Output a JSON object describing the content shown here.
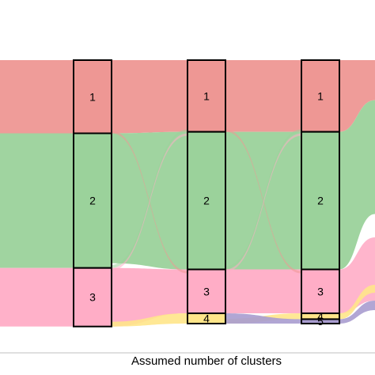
{
  "chart_data": {
    "type": "alluvial",
    "xlabel": "Assumed number of clusters",
    "axes": [
      {
        "strata": [
          {
            "label": "1",
            "value": 0.25
          },
          {
            "label": "2",
            "value": 0.46
          },
          {
            "label": "3",
            "value": 0.2
          }
        ]
      },
      {
        "strata": [
          {
            "label": "1",
            "value": 0.245
          },
          {
            "label": "2",
            "value": 0.47
          },
          {
            "label": "3",
            "value": 0.15
          },
          {
            "label": "4",
            "value": 0.035
          }
        ]
      },
      {
        "strata": [
          {
            "label": "1",
            "value": 0.245
          },
          {
            "label": "2",
            "value": 0.47
          },
          {
            "label": "3",
            "value": 0.15
          },
          {
            "label": "4",
            "value": 0.02
          },
          {
            "label": "5",
            "value": 0.015
          }
        ]
      }
    ],
    "colors": {
      "cluster1": "#ee9794",
      "cluster2": "#9bd29b",
      "cluster3": "#ffadc6",
      "cluster4": "#ffe68a",
      "cluster5": "#a89ccf",
      "box_stroke": "#000000",
      "axis_line": "#bfbfbf"
    }
  }
}
